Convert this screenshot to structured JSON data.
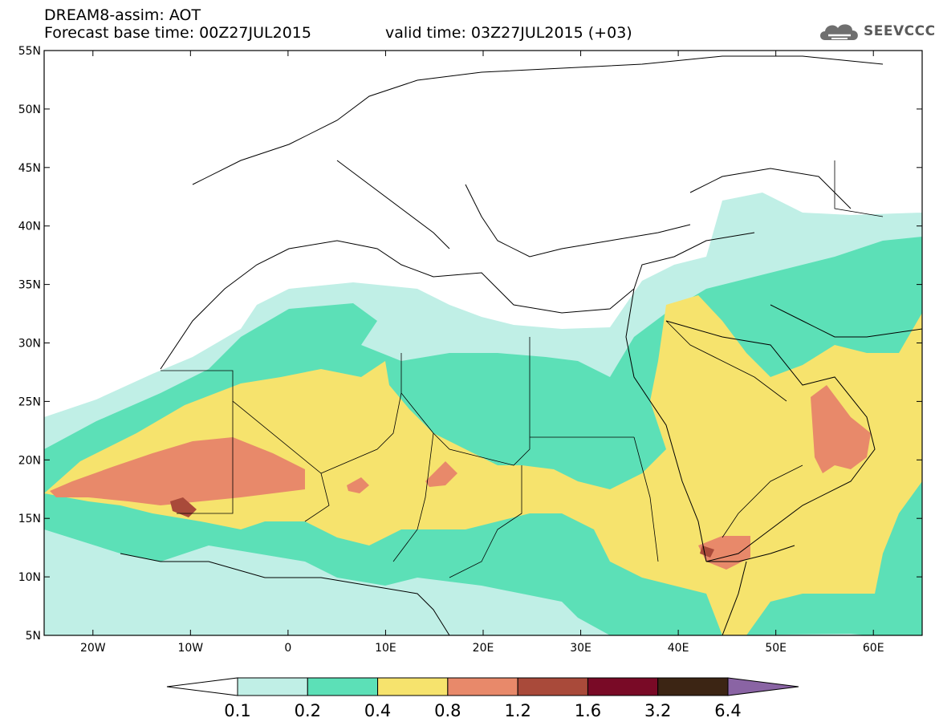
{
  "header": {
    "title": "DREAM8-assim: AOT",
    "base_time": "Forecast base time: 00Z27JUL2015",
    "valid_time": "valid time: 03Z27JUL2015 (+03)"
  },
  "logo": {
    "text": "SEEVCCC",
    "icon": "cloud-icon"
  },
  "map": {
    "lon_range": [
      -25,
      65
    ],
    "lat_range": [
      5,
      55
    ],
    "lat_ticks": [
      {
        "value": 55,
        "label": "55N"
      },
      {
        "value": 50,
        "label": "50N"
      },
      {
        "value": 45,
        "label": "45N"
      },
      {
        "value": 40,
        "label": "40N"
      },
      {
        "value": 35,
        "label": "35N"
      },
      {
        "value": 30,
        "label": "30N"
      },
      {
        "value": 25,
        "label": "25N"
      },
      {
        "value": 20,
        "label": "20N"
      },
      {
        "value": 15,
        "label": "15N"
      },
      {
        "value": 10,
        "label": "10N"
      },
      {
        "value": 5,
        "label": "5N"
      }
    ],
    "lon_ticks": [
      {
        "value": -20,
        "label": "20W"
      },
      {
        "value": -10,
        "label": "10W"
      },
      {
        "value": 0,
        "label": "0"
      },
      {
        "value": 10,
        "label": "10E"
      },
      {
        "value": 20,
        "label": "20E"
      },
      {
        "value": 30,
        "label": "30E"
      },
      {
        "value": 40,
        "label": "40E"
      },
      {
        "value": 50,
        "label": "50E"
      },
      {
        "value": 60,
        "label": "60E"
      }
    ]
  },
  "colorbar": {
    "levels": [
      "0.1",
      "0.2",
      "0.4",
      "0.8",
      "1.2",
      "1.6",
      "3.2",
      "6.4"
    ],
    "colors": [
      "#ffffff",
      "#c0efe6",
      "#5ce0b7",
      "#f6e36d",
      "#e8896a",
      "#a94a3a",
      "#790a26",
      "#3c2514",
      "#8a64a4"
    ]
  }
}
